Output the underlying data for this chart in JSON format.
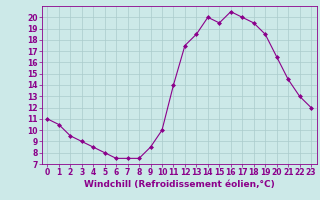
{
  "x": [
    0,
    1,
    2,
    3,
    4,
    5,
    6,
    7,
    8,
    9,
    10,
    11,
    12,
    13,
    14,
    15,
    16,
    17,
    18,
    19,
    20,
    21,
    22,
    23
  ],
  "y": [
    11,
    10.5,
    9.5,
    9,
    8.5,
    8,
    7.5,
    7.5,
    7.5,
    8.5,
    10,
    14,
    17.5,
    18.5,
    20,
    19.5,
    20.5,
    20,
    19.5,
    18.5,
    16.5,
    14.5,
    13,
    12
  ],
  "line_color": "#8B008B",
  "marker": "D",
  "marker_size": 2.0,
  "bg_color": "#cce9e8",
  "grid_color": "#aacccc",
  "xlabel": "Windchill (Refroidissement éolien,°C)",
  "xlabel_fontsize": 6.5,
  "tick_fontsize": 5.5,
  "ylim": [
    7,
    21
  ],
  "xlim": [
    -0.5,
    23.5
  ],
  "yticks": [
    7,
    8,
    9,
    10,
    11,
    12,
    13,
    14,
    15,
    16,
    17,
    18,
    19,
    20
  ],
  "xticks": [
    0,
    1,
    2,
    3,
    4,
    5,
    6,
    7,
    8,
    9,
    10,
    11,
    12,
    13,
    14,
    15,
    16,
    17,
    18,
    19,
    20,
    21,
    22,
    23
  ]
}
